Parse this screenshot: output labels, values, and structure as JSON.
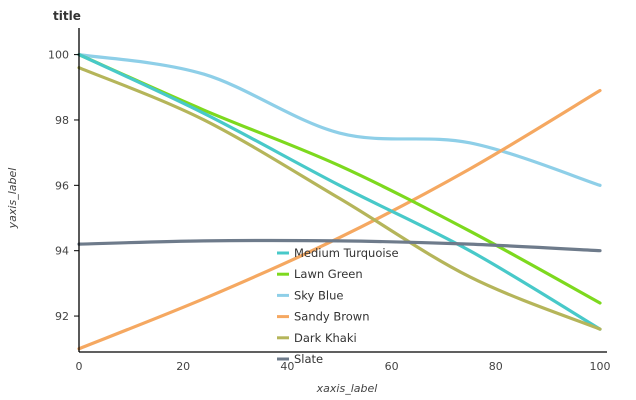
{
  "chart_data": {
    "type": "line",
    "title": "title",
    "xlabel": "xaxis_label",
    "ylabel": "yaxis_label",
    "xlim": [
      0,
      100
    ],
    "ylim": [
      90.9,
      100.6
    ],
    "x_ticks": [
      0,
      20,
      40,
      60,
      80,
      100
    ],
    "y_ticks": [
      92,
      94,
      96,
      98,
      100
    ],
    "grid": false,
    "legend_position": "center",
    "series": [
      {
        "name": "Medium Turquoise",
        "color": "#48c9c9",
        "x": [
          0,
          24,
          50,
          75,
          100
        ],
        "y": [
          100.0,
          98.2,
          96.0,
          94.0,
          91.6
        ]
      },
      {
        "name": "Lawn Green",
        "color": "#7dd91e",
        "x": [
          0,
          24,
          50,
          75,
          100
        ],
        "y": [
          100.0,
          98.3,
          96.6,
          94.6,
          92.4
        ]
      },
      {
        "name": "Sky Blue",
        "color": "#8ecfe8",
        "x": [
          0,
          24,
          50,
          75,
          100
        ],
        "y": [
          100.0,
          99.4,
          97.6,
          97.3,
          96.0
        ]
      },
      {
        "name": "Sandy Brown",
        "color": "#f5a861",
        "x": [
          0,
          25,
          50,
          75,
          100
        ],
        "y": [
          91.0,
          92.6,
          94.4,
          96.5,
          98.9
        ]
      },
      {
        "name": "Dark Khaki",
        "color": "#b5b55a",
        "x": [
          0,
          24,
          50,
          75,
          100
        ],
        "y": [
          99.6,
          98.0,
          95.6,
          93.2,
          91.6
        ]
      },
      {
        "name": "Slate",
        "color": "#6e7b8b",
        "x": [
          0,
          24,
          50,
          75,
          100
        ],
        "y": [
          94.2,
          94.3,
          94.3,
          94.2,
          94.0
        ]
      }
    ]
  }
}
